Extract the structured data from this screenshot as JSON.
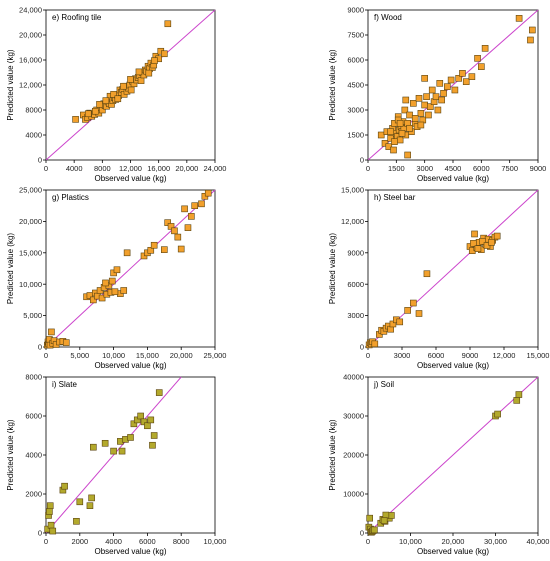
{
  "chart_data": [
    {
      "type": "scatter",
      "title": "e) Roofing tile",
      "xlabel": "Observed value (kg)",
      "ylabel": "Predicted value (kg)",
      "xlim": [
        0,
        24000
      ],
      "ylim": [
        0,
        24000
      ],
      "xticks": [
        0,
        4000,
        8000,
        12000,
        16000,
        20000,
        24000
      ],
      "yticks": [
        0,
        4000,
        8000,
        12000,
        16000,
        20000,
        24000
      ],
      "xtick_labels": [
        "0",
        "4000",
        "8000",
        "12,000",
        "16,000",
        "20,000",
        "24,000"
      ],
      "ytick_labels": [
        "0",
        "4000",
        "8000",
        "12,000",
        "16,000",
        "20,000",
        "24,000"
      ],
      "diagonal": true,
      "marker_color": "#f2a02c",
      "x": [
        4200,
        5300,
        5600,
        5900,
        6200,
        6500,
        6900,
        7200,
        7500,
        7800,
        8000,
        8200,
        8400,
        8600,
        8800,
        9000,
        9100,
        9300,
        9500,
        9700,
        9900,
        10100,
        10300,
        10500,
        10700,
        10900,
        11100,
        11300,
        11500,
        11700,
        11900,
        12100,
        12300,
        12500,
        12700,
        12900,
        13100,
        13300,
        13500,
        13700,
        13900,
        14100,
        14300,
        14500,
        14700,
        14900,
        15100,
        15300,
        15600,
        16000,
        16300,
        16800,
        17300,
        7000,
        8500,
        9600,
        11000,
        12000,
        13200,
        14600,
        15400,
        6000,
        7600,
        10200
      ],
      "y": [
        6500,
        7200,
        6500,
        6800,
        7500,
        7000,
        7300,
        8000,
        7500,
        8400,
        8000,
        9000,
        8700,
        8600,
        9300,
        9000,
        10200,
        8900,
        9500,
        10000,
        9700,
        10400,
        10300,
        11200,
        10800,
        11300,
        10500,
        11800,
        11000,
        11500,
        12000,
        11200,
        12600,
        12200,
        13000,
        12800,
        13200,
        13500,
        12700,
        14000,
        13600,
        14400,
        14200,
        15000,
        14600,
        15500,
        14800,
        15200,
        16600,
        16200,
        17400,
        17000,
        21800,
        7800,
        9500,
        10500,
        11800,
        12900,
        14100,
        13900,
        15900,
        7400,
        8900,
        9800
      ]
    },
    {
      "type": "scatter",
      "title": "f) Wood",
      "xlabel": "Observed value (kg)",
      "ylabel": "Predicted value (kg)",
      "xlim": [
        0,
        9000
      ],
      "ylim": [
        0,
        9000
      ],
      "xticks": [
        0,
        1500,
        3000,
        4500,
        6000,
        7500,
        9000
      ],
      "yticks": [
        0,
        1500,
        3000,
        4500,
        6000,
        7500,
        9000
      ],
      "xtick_labels": [
        "0",
        "1500",
        "3000",
        "4500",
        "6000",
        "7500",
        "9000"
      ],
      "ytick_labels": [
        "0",
        "1500",
        "3000",
        "4500",
        "6000",
        "7500",
        "9000"
      ],
      "diagonal": true,
      "marker_color": "#f2a02c",
      "x": [
        700,
        900,
        1000,
        1100,
        1200,
        1300,
        1350,
        1400,
        1500,
        1550,
        1600,
        1650,
        1700,
        1750,
        1800,
        1850,
        1900,
        1950,
        2000,
        2100,
        2200,
        2300,
        2400,
        2500,
        2600,
        2700,
        2800,
        2900,
        3000,
        3100,
        3200,
        3300,
        3400,
        3500,
        3600,
        3700,
        3800,
        3900,
        4000,
        4200,
        4400,
        4600,
        4800,
        5000,
        5200,
        5500,
        5800,
        6000,
        6200,
        8000,
        8600,
        8700,
        1400,
        1600,
        1800,
        2000,
        2200,
        2500,
        2800,
        3000,
        1200,
        1700,
        2100
      ],
      "y": [
        1500,
        1000,
        1700,
        800,
        1300,
        1900,
        600,
        2200,
        1600,
        1400,
        2600,
        1800,
        1200,
        2000,
        1700,
        2300,
        1900,
        3000,
        1500,
        2200,
        2700,
        1700,
        3400,
        2200,
        2000,
        3700,
        2800,
        2400,
        3300,
        3800,
        2700,
        3200,
        4200,
        3500,
        3800,
        3000,
        4600,
        3600,
        4000,
        4400,
        4800,
        4200,
        4900,
        5200,
        4700,
        5000,
        6100,
        5600,
        6700,
        8500,
        7200,
        7800,
        1100,
        2400,
        1600,
        3600,
        1900,
        2500,
        2100,
        4900,
        1700,
        2200,
        300
      ]
    },
    {
      "type": "scatter",
      "title": "g) Plastics",
      "xlabel": "Observed value (kg)",
      "ylabel": "Predicted value (kg)",
      "xlim": [
        0,
        25000
      ],
      "ylim": [
        0,
        25000
      ],
      "xticks": [
        0,
        5000,
        10000,
        15000,
        20000,
        25000
      ],
      "yticks": [
        0,
        5000,
        10000,
        15000,
        20000,
        25000
      ],
      "xtick_labels": [
        "0",
        "5,000",
        "10,000",
        "15,000",
        "20,000",
        "25,000"
      ],
      "ytick_labels": [
        "0",
        "5,000",
        "10,000",
        "15,000",
        "20,000",
        "25,000"
      ],
      "diagonal": true,
      "marker_color": "#f2a02c",
      "x": [
        200,
        300,
        400,
        500,
        600,
        800,
        1000,
        1200,
        1500,
        2000,
        2500,
        3000,
        6000,
        6500,
        7000,
        7300,
        7600,
        8000,
        8300,
        8600,
        9000,
        9300,
        9600,
        10000,
        10500,
        11000,
        11500,
        12000,
        14500,
        15000,
        15500,
        16000,
        17500,
        18000,
        18500,
        19000,
        19500,
        20000,
        20500,
        21000,
        21500,
        22000,
        23000,
        23500,
        24000,
        8800,
        9800,
        10200
      ],
      "y": [
        300,
        800,
        500,
        1200,
        300,
        2400,
        600,
        1000,
        400,
        800,
        900,
        700,
        8000,
        8200,
        7500,
        8600,
        8100,
        9000,
        7800,
        9500,
        8400,
        9800,
        8700,
        11800,
        12300,
        8500,
        9000,
        15000,
        14500,
        15000,
        15400,
        16200,
        15500,
        19800,
        19200,
        18500,
        17500,
        15600,
        22000,
        19000,
        20800,
        22500,
        22800,
        24000,
        24500,
        10200,
        10500,
        8800
      ]
    },
    {
      "type": "scatter",
      "title": "h) Steel bar",
      "xlabel": "Observed value (kg)",
      "ylabel": "Predicted value (kg)",
      "xlim": [
        0,
        15000
      ],
      "ylim": [
        0,
        15000
      ],
      "xticks": [
        0,
        3000,
        6000,
        9000,
        12000,
        15000
      ],
      "yticks": [
        0,
        3000,
        6000,
        9000,
        12000,
        15000
      ],
      "xtick_labels": [
        "0",
        "3000",
        "6000",
        "9000",
        "12,000",
        "15,000"
      ],
      "ytick_labels": [
        "0",
        "3000",
        "6000",
        "9000",
        "12,000",
        "15,000"
      ],
      "diagonal": true,
      "marker_color": "#f2a02c",
      "x": [
        100,
        200,
        300,
        400,
        600,
        1000,
        1200,
        1400,
        1600,
        1800,
        2000,
        2200,
        2500,
        2800,
        3500,
        4000,
        4500,
        5200,
        9000,
        9200,
        9400,
        9600,
        9800,
        10000,
        10200,
        10400,
        10600,
        10800,
        11000,
        11200,
        11400,
        9300,
        9700,
        10100,
        10500,
        10900
      ],
      "y": [
        200,
        400,
        300,
        500,
        300,
        1200,
        1600,
        1500,
        1800,
        2000,
        1700,
        2200,
        2600,
        2400,
        3500,
        4200,
        3200,
        7000,
        9600,
        9200,
        10800,
        9500,
        10000,
        9300,
        10400,
        9800,
        10300,
        9600,
        10200,
        10500,
        10600,
        9900,
        9400,
        10100,
        9700,
        10000
      ]
    },
    {
      "type": "scatter",
      "title": "i) Slate",
      "xlabel": "Observed value (kg)",
      "ylabel": "Predicted value (kg)",
      "xlim": [
        0,
        10000
      ],
      "ylim": [
        0,
        8000
      ],
      "xticks": [
        0,
        2000,
        4000,
        6000,
        8000,
        10000
      ],
      "yticks": [
        0,
        2000,
        4000,
        6000,
        8000
      ],
      "xtick_labels": [
        "0",
        "2000",
        "4000",
        "6000",
        "8000",
        "10,000"
      ],
      "ytick_labels": [
        "0",
        "2000",
        "4000",
        "6000",
        "8000"
      ],
      "diagonal": true,
      "marker_color": "#b3a92c",
      "x": [
        100,
        150,
        200,
        250,
        300,
        400,
        1000,
        1100,
        1800,
        2000,
        2600,
        2700,
        2800,
        3500,
        4000,
        4400,
        4500,
        4700,
        5000,
        5200,
        5400,
        5600,
        5800,
        6000,
        6200,
        6300,
        6400,
        6700
      ],
      "y": [
        200,
        900,
        1100,
        1400,
        400,
        100,
        2200,
        2400,
        600,
        1600,
        1400,
        1800,
        4400,
        4600,
        4200,
        4700,
        4200,
        4800,
        4900,
        5600,
        5800,
        6000,
        5700,
        5500,
        5800,
        4500,
        5000,
        7200
      ]
    },
    {
      "type": "scatter",
      "title": "j) Soil",
      "xlabel": "Observed value (kg)",
      "ylabel": "Predicted value (kg)",
      "xlim": [
        0,
        40000
      ],
      "ylim": [
        0,
        40000
      ],
      "xticks": [
        0,
        10000,
        20000,
        30000,
        40000
      ],
      "yticks": [
        0,
        10000,
        20000,
        30000,
        40000
      ],
      "xtick_labels": [
        "0",
        "10,000",
        "20,000",
        "30,000",
        "40,000"
      ],
      "ytick_labels": [
        "0",
        "10000",
        "20000",
        "30000",
        "40000"
      ],
      "diagonal": true,
      "marker_color": "#b3a92c",
      "x": [
        200,
        400,
        600,
        800,
        1000,
        1200,
        1500,
        3000,
        3500,
        4000,
        4500,
        5000,
        5500,
        4200,
        3800,
        30000,
        30500,
        35000,
        35500
      ],
      "y": [
        1500,
        3800,
        1000,
        200,
        400,
        600,
        800,
        2500,
        3500,
        3000,
        4200,
        3800,
        4500,
        4600,
        3200,
        30000,
        30500,
        34000,
        35500
      ]
    }
  ]
}
